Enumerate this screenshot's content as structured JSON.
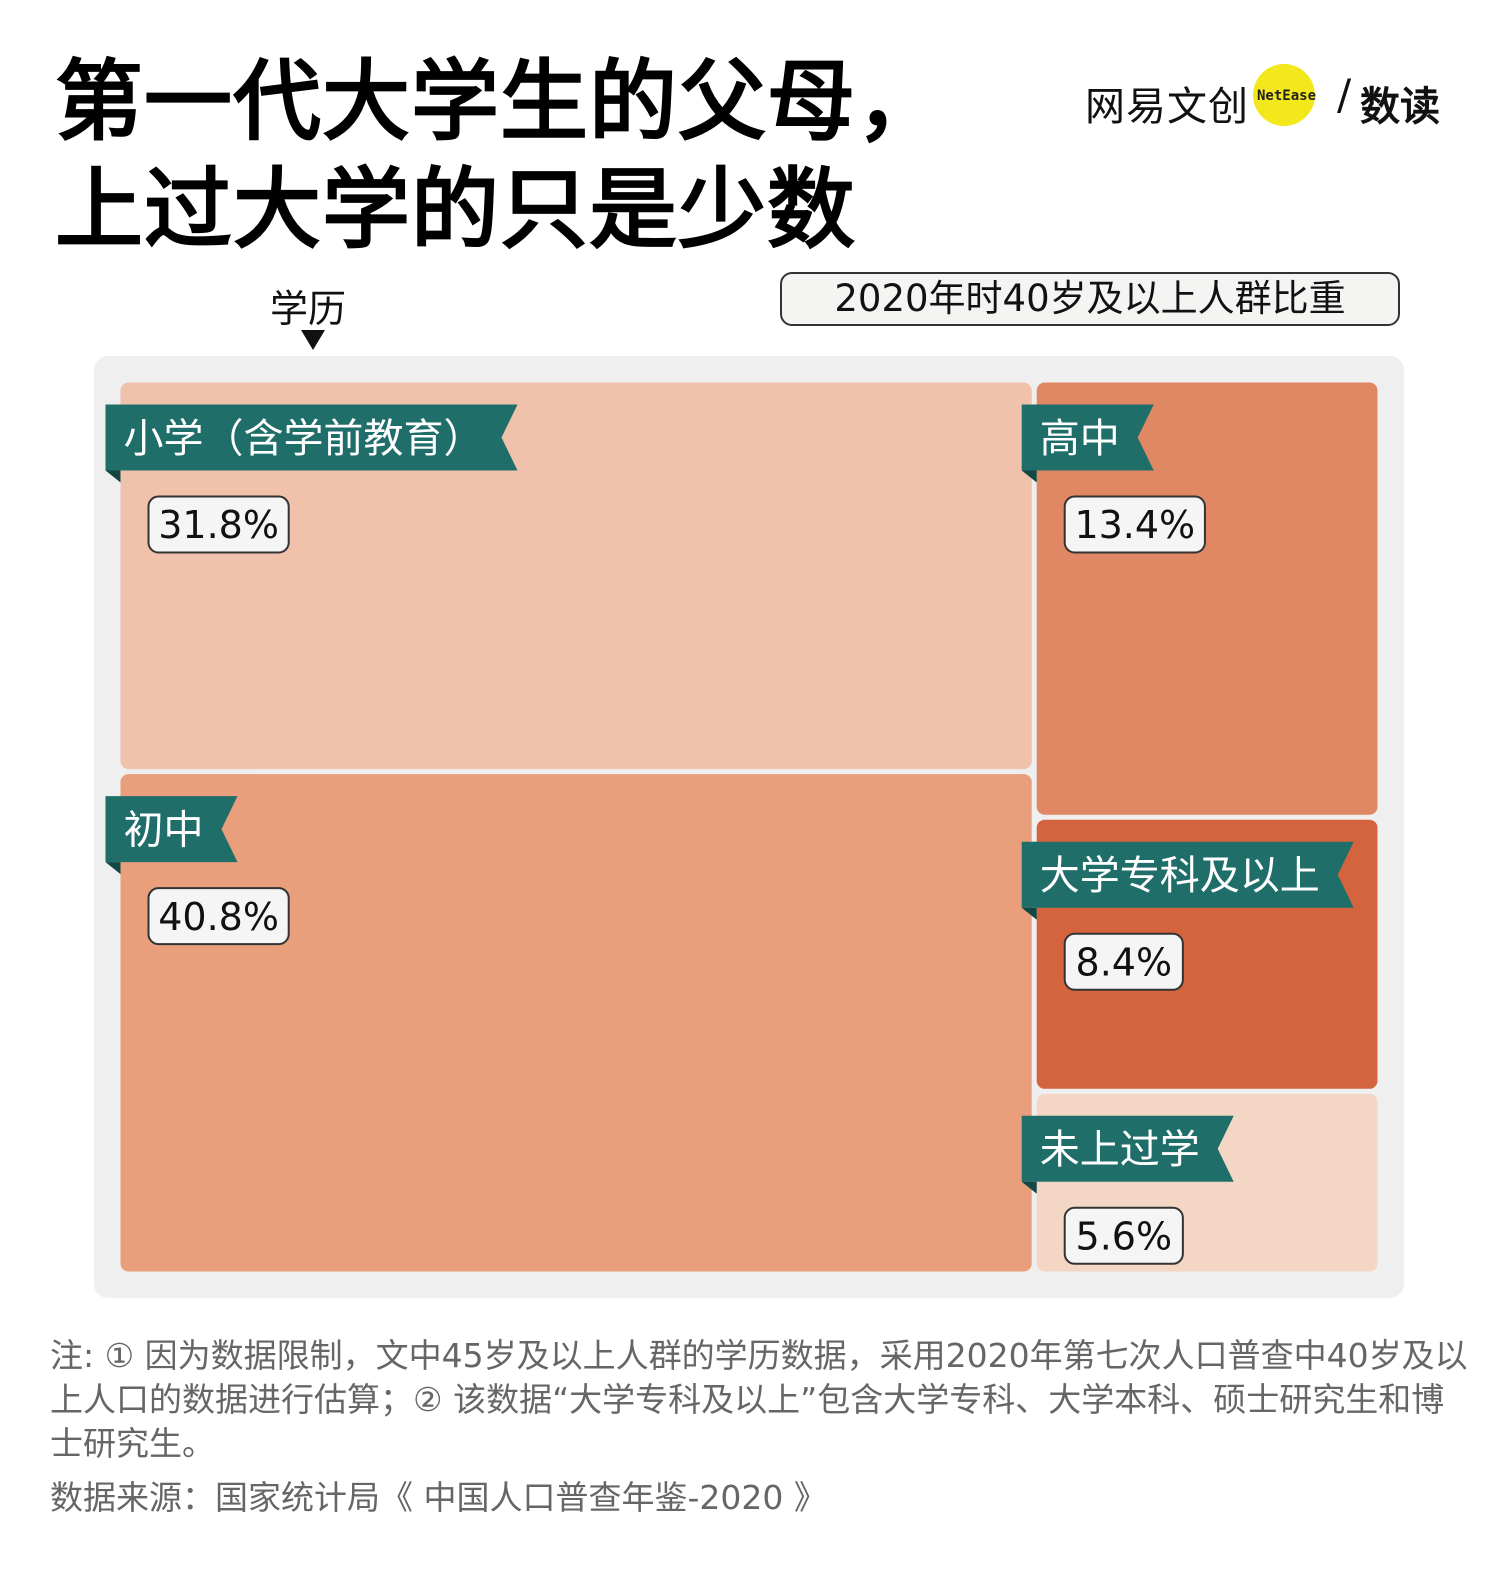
{
  "title": {
    "line1": "第一代大学生的父母，",
    "line2": "上过大学的只是少数"
  },
  "logo": {
    "main": "网易文创",
    "en": "NetEase",
    "slash": "/",
    "sub": "数读",
    "dot_color": "#f3e81c"
  },
  "chart_data": {
    "type": "treemap",
    "dimension_label": "学历",
    "metric_label": "2020年时40岁及以上人群比重",
    "unit": "%",
    "items": [
      {
        "label": "小学（含学前教育）",
        "value": 31.8,
        "value_label": "31.8%",
        "color": "#f0c1ab"
      },
      {
        "label": "初中",
        "value": 40.8,
        "value_label": "40.8%",
        "color": "#ea9f7c"
      },
      {
        "label": "高中",
        "value": 13.4,
        "value_label": "13.4%",
        "color": "#e08763"
      },
      {
        "label": "大学专科及以上",
        "value": 8.4,
        "value_label": "8.4%",
        "color": "#d4643e"
      },
      {
        "label": "未上过学",
        "value": 5.6,
        "value_label": "5.6%",
        "color": "#f3d6c3"
      }
    ],
    "label_ribbon_color": "#1f6e6a",
    "value_badge_color": "#f5f5f5"
  },
  "note": "注: ① 因为数据限制，文中45岁及以上人群的学历数据，采用2020年第七次人口普查中40岁及以上人口的数据进行估算；② 该数据“大学专科及以上”包含大学专科、大学本科、硕士研究生和博士研究生。",
  "source": "数据来源：国家统计局《 中国人口普查年鉴-2020 》"
}
